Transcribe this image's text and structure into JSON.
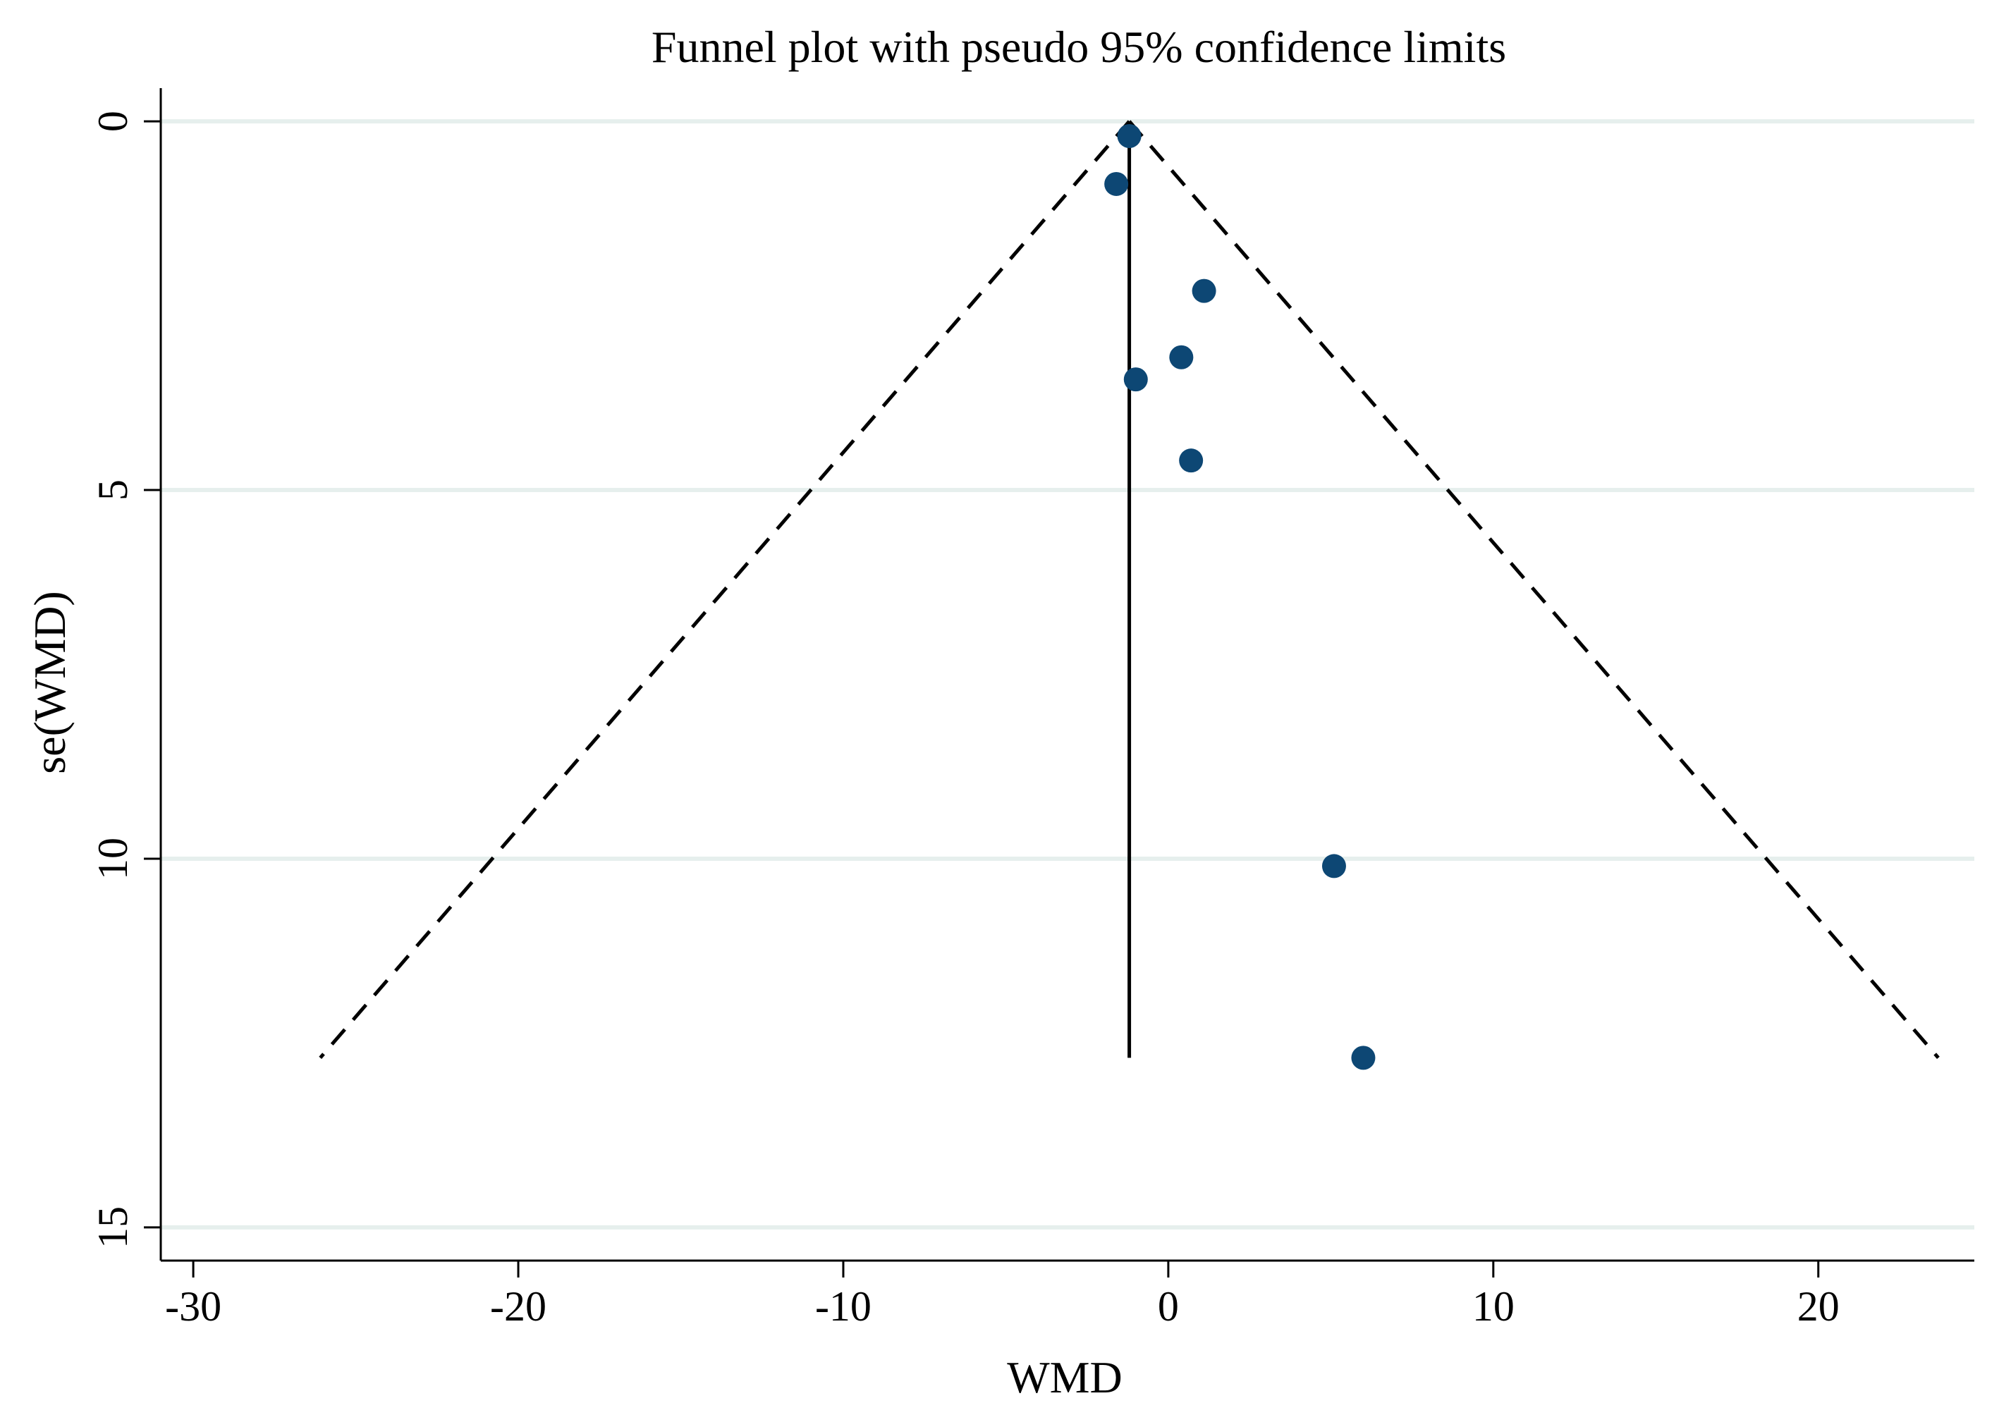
{
  "chart_data": {
    "type": "scatter",
    "title": "Funnel plot with pseudo 95% confidence limits",
    "xlabel": "WMD",
    "ylabel": "se(WMD)",
    "xlim": [
      -31,
      24.8
    ],
    "ylim": [
      -0.45,
      15.45
    ],
    "y_reversed": true,
    "x_ticks": [
      -30,
      -20,
      -10,
      0,
      10,
      20
    ],
    "x_tick_labels": [
      "-30",
      "-20",
      "-10",
      "0",
      "10",
      "20"
    ],
    "y_ticks": [
      0,
      5,
      10,
      15
    ],
    "y_tick_labels": [
      "0",
      "5",
      "10",
      "15"
    ],
    "grid": "horizontal at y ticks",
    "pooled_estimate": -1.2,
    "funnel_max_se": 12.7,
    "points": [
      {
        "x": -1.2,
        "y": 0.2
      },
      {
        "x": -1.6,
        "y": 0.85
      },
      {
        "x": 1.1,
        "y": 2.3
      },
      {
        "x": 0.4,
        "y": 3.2
      },
      {
        "x": -1.0,
        "y": 3.5
      },
      {
        "x": 0.7,
        "y": 4.6
      },
      {
        "x": 5.1,
        "y": 10.1
      },
      {
        "x": 6.0,
        "y": 12.7
      }
    ],
    "colors": {
      "points": "#0d4774",
      "grid": "#e6efed",
      "axis": "#000000"
    }
  }
}
